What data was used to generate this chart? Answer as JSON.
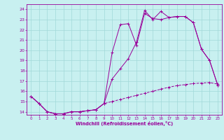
{
  "xlabel": "Windchill (Refroidissement éolien,°C)",
  "xlim": [
    -0.5,
    23.5
  ],
  "ylim": [
    13.7,
    24.5
  ],
  "yticks": [
    14,
    15,
    16,
    17,
    18,
    19,
    20,
    21,
    22,
    23,
    24
  ],
  "xticks": [
    0,
    1,
    2,
    3,
    4,
    5,
    6,
    7,
    8,
    9,
    10,
    11,
    12,
    13,
    14,
    15,
    16,
    17,
    18,
    19,
    20,
    21,
    22,
    23
  ],
  "line_color": "#990099",
  "bg_color": "#c8f0f0",
  "grid_color": "#a0d8d8",
  "line1_x": [
    0,
    1,
    2,
    3,
    4,
    5,
    6,
    7,
    8,
    9,
    10,
    11,
    12,
    13,
    14,
    15,
    16,
    17,
    18,
    19,
    20,
    21,
    22,
    23
  ],
  "line1_y": [
    15.5,
    14.8,
    14.0,
    13.8,
    13.8,
    14.0,
    14.0,
    14.1,
    14.2,
    14.8,
    19.8,
    22.5,
    22.6,
    20.5,
    23.6,
    23.1,
    23.0,
    23.2,
    23.3,
    23.3,
    22.7,
    20.1,
    19.0,
    16.6
  ],
  "line2_x": [
    0,
    1,
    2,
    3,
    4,
    5,
    6,
    7,
    8,
    9,
    10,
    11,
    12,
    13,
    14,
    15,
    16,
    17,
    18,
    19,
    20,
    21,
    22,
    23
  ],
  "line2_y": [
    15.5,
    14.8,
    14.0,
    13.8,
    13.8,
    14.0,
    14.0,
    14.1,
    14.2,
    14.8,
    17.2,
    18.2,
    19.2,
    20.8,
    23.9,
    23.0,
    23.8,
    23.2,
    23.3,
    23.3,
    22.7,
    20.1,
    19.0,
    16.6
  ],
  "line3_x": [
    0,
    1,
    2,
    3,
    4,
    5,
    6,
    7,
    8,
    9,
    10,
    11,
    12,
    13,
    14,
    15,
    16,
    17,
    18,
    19,
    20,
    21,
    22,
    23
  ],
  "line3_y": [
    15.5,
    14.8,
    14.0,
    13.8,
    13.8,
    14.0,
    14.0,
    14.1,
    14.2,
    14.8,
    15.0,
    15.2,
    15.4,
    15.6,
    15.8,
    16.0,
    16.2,
    16.4,
    16.55,
    16.65,
    16.75,
    16.8,
    16.85,
    16.7
  ]
}
